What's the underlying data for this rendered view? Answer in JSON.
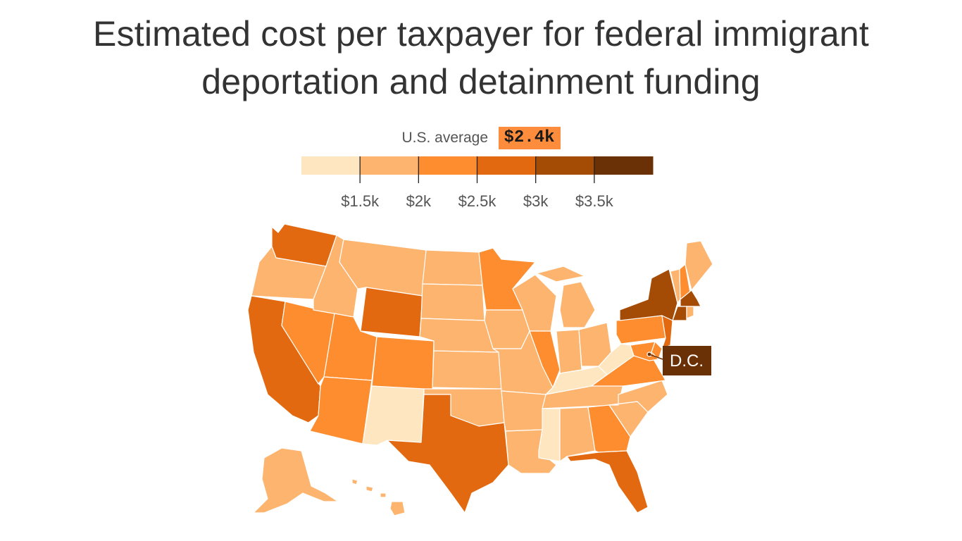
{
  "title": "Estimated cost per taxpayer for federal immigrant deportation and detainment funding",
  "title_line1": "Estimated cost per taxpayer for federal immigrant",
  "title_line2": "deportation and detainment funding",
  "average": {
    "label": "U.S. average",
    "value": "$2.4k"
  },
  "legend": {
    "bins": [
      {
        "color": "#fee6c0"
      },
      {
        "color": "#fdb46e"
      },
      {
        "color": "#fd8d2e"
      },
      {
        "color": "#e2690f"
      },
      {
        "color": "#a44c05"
      },
      {
        "color": "#6b3106"
      }
    ],
    "ticks": [
      "$1.5k",
      "$2k",
      "$2.5k",
      "$3k",
      "$3.5k"
    ]
  },
  "callout": {
    "label": "D.C.",
    "color": "#6b3106"
  },
  "chart_data": {
    "type": "choropleth",
    "title": "Estimated cost per taxpayer for federal immigrant deportation and detainment funding",
    "bins_label": [
      "< $1.5k",
      "$1.5k–$2k",
      "$2k–$2.5k",
      "$2.5k–$3k",
      "$3k–$3.5k",
      "> $3.5k"
    ],
    "states": [
      {
        "id": "WA",
        "bin": 3
      },
      {
        "id": "OR",
        "bin": 1
      },
      {
        "id": "CA",
        "bin": 3
      },
      {
        "id": "NV",
        "bin": 2
      },
      {
        "id": "ID",
        "bin": 1
      },
      {
        "id": "MT",
        "bin": 1
      },
      {
        "id": "WY",
        "bin": 3
      },
      {
        "id": "UT",
        "bin": 2
      },
      {
        "id": "AZ",
        "bin": 2
      },
      {
        "id": "CO",
        "bin": 2
      },
      {
        "id": "NM",
        "bin": 0
      },
      {
        "id": "ND",
        "bin": 1
      },
      {
        "id": "SD",
        "bin": 1
      },
      {
        "id": "NE",
        "bin": 1
      },
      {
        "id": "KS",
        "bin": 1
      },
      {
        "id": "OK",
        "bin": 1
      },
      {
        "id": "TX",
        "bin": 3
      },
      {
        "id": "MN",
        "bin": 2
      },
      {
        "id": "IA",
        "bin": 1
      },
      {
        "id": "MO",
        "bin": 1
      },
      {
        "id": "AR",
        "bin": 1
      },
      {
        "id": "LA",
        "bin": 1
      },
      {
        "id": "WI",
        "bin": 1
      },
      {
        "id": "IL",
        "bin": 2
      },
      {
        "id": "MI",
        "bin": 1
      },
      {
        "id": "IN",
        "bin": 1
      },
      {
        "id": "OH",
        "bin": 1
      },
      {
        "id": "KY",
        "bin": 0
      },
      {
        "id": "TN",
        "bin": 1
      },
      {
        "id": "MS",
        "bin": 0
      },
      {
        "id": "AL",
        "bin": 1
      },
      {
        "id": "GA",
        "bin": 2
      },
      {
        "id": "FL",
        "bin": 3
      },
      {
        "id": "SC",
        "bin": 1
      },
      {
        "id": "NC",
        "bin": 1
      },
      {
        "id": "VA",
        "bin": 2
      },
      {
        "id": "WV",
        "bin": 0
      },
      {
        "id": "PA",
        "bin": 2
      },
      {
        "id": "NY",
        "bin": 4
      },
      {
        "id": "NJ",
        "bin": 3
      },
      {
        "id": "DE",
        "bin": 2
      },
      {
        "id": "MD",
        "bin": 2
      },
      {
        "id": "VT",
        "bin": 1
      },
      {
        "id": "NH",
        "bin": 2
      },
      {
        "id": "ME",
        "bin": 1
      },
      {
        "id": "MA",
        "bin": 4
      },
      {
        "id": "CT",
        "bin": 4
      },
      {
        "id": "RI",
        "bin": 1
      },
      {
        "id": "AK",
        "bin": 1
      },
      {
        "id": "HI",
        "bin": 1
      },
      {
        "id": "DC",
        "bin": 5
      }
    ]
  }
}
